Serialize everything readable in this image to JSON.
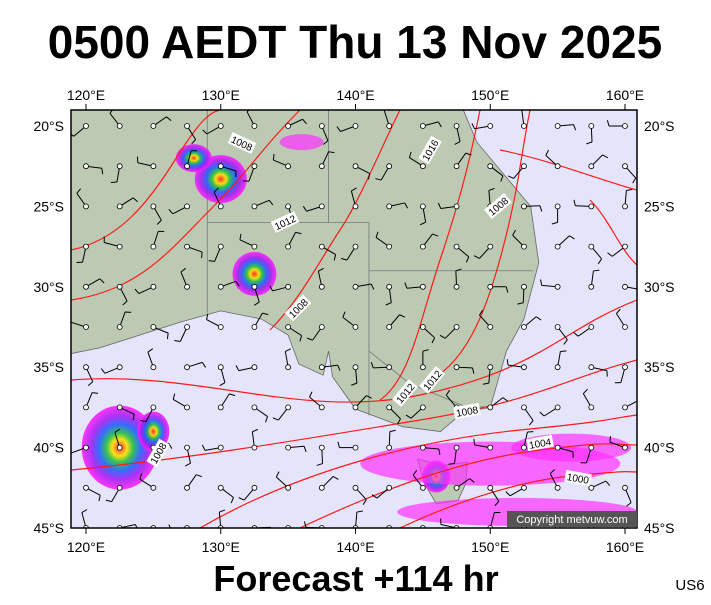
{
  "title": "0500 AEDT Thu 13 Nov 2025",
  "footer": "Forecast +114 hr",
  "code": "US6",
  "copyright": "Copyright metvuw.com",
  "lon_ticks": [
    "120°E",
    "130°E",
    "140°E",
    "150°E",
    "160°E"
  ],
  "lat_ticks": [
    "20°S",
    "25°S",
    "30°S",
    "35°S",
    "40°S",
    "45°S"
  ],
  "isobar_labels": [
    "1008",
    "1012",
    "1016",
    "1008",
    "1008",
    "1012",
    "1012",
    "1008",
    "1008",
    "1004",
    "1000"
  ]
}
